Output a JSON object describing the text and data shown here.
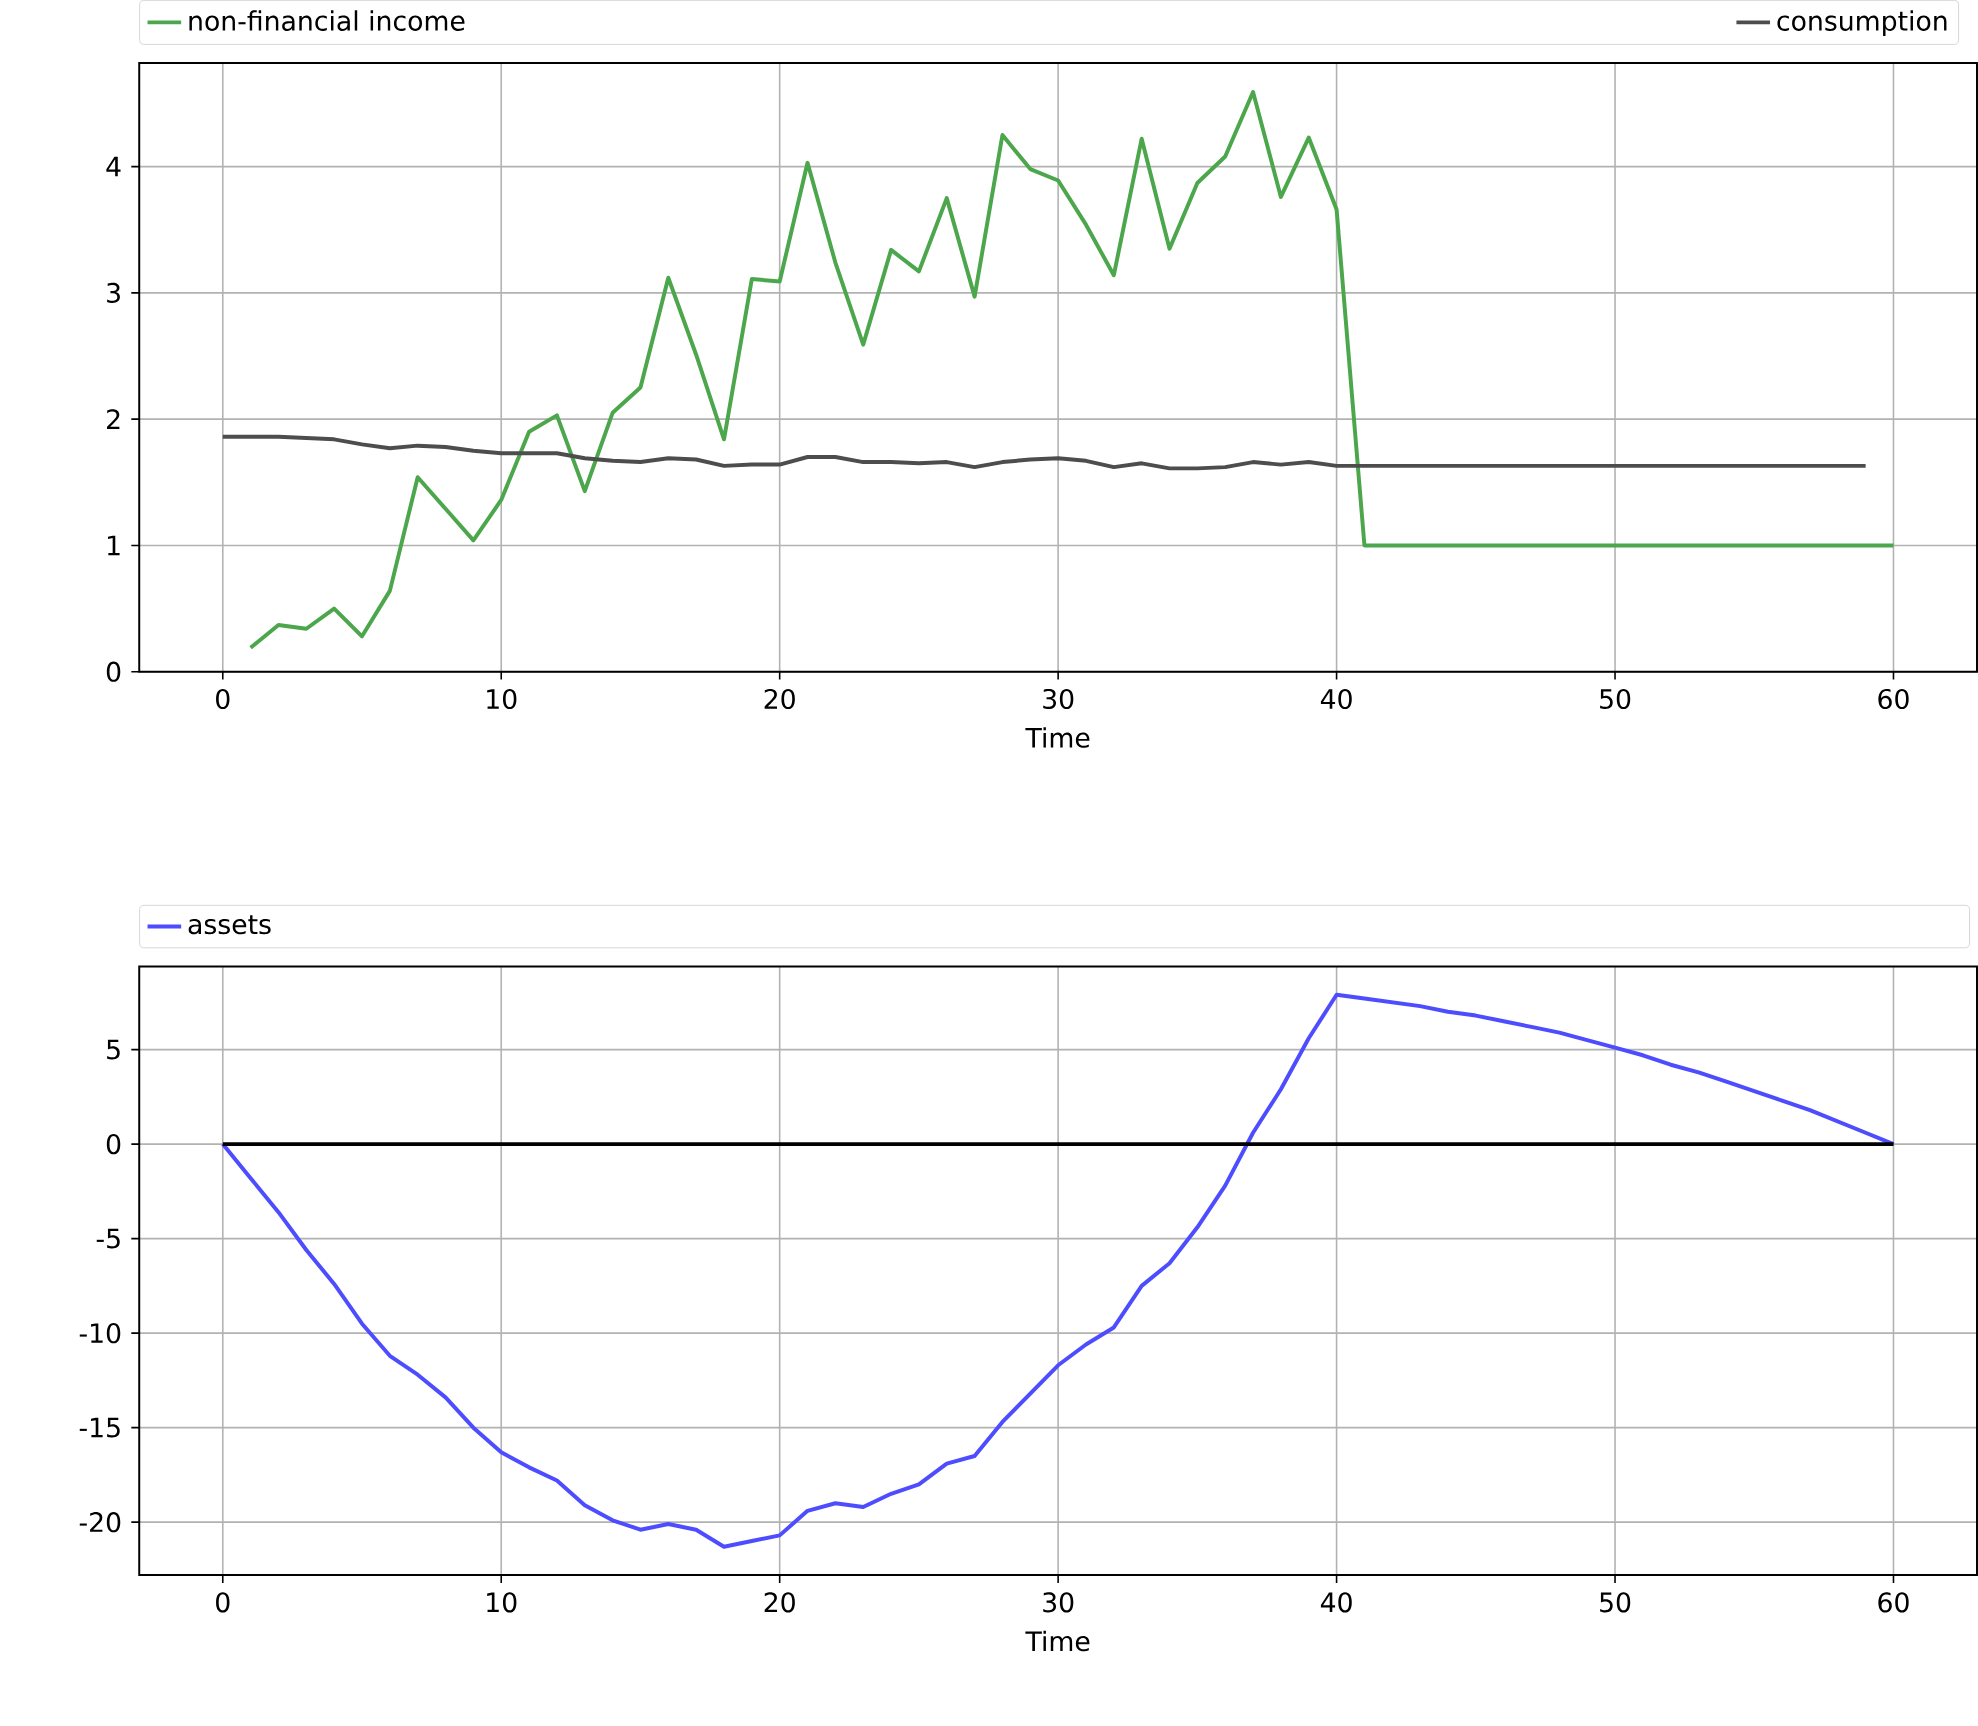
{
  "chart_data": [
    {
      "type": "line",
      "xlabel": "Time",
      "xlim": [
        -3,
        63
      ],
      "ylim": [
        0,
        4.82
      ],
      "xticks": [
        0,
        10,
        20,
        30,
        40,
        50,
        60
      ],
      "yticks": [
        0,
        1,
        2,
        3,
        4
      ],
      "grid": true,
      "legend": "top",
      "marker": "none",
      "line_style": "solid",
      "series": [
        {
          "name": "non-financial income",
          "color": "#4ca64c",
          "x": [
            1,
            2,
            3,
            4,
            5,
            6,
            7,
            8,
            9,
            10,
            11,
            12,
            13,
            14,
            15,
            16,
            17,
            18,
            19,
            20,
            21,
            22,
            23,
            24,
            25,
            26,
            27,
            28,
            29,
            30,
            31,
            32,
            33,
            34,
            35,
            36,
            37,
            38,
            39,
            40,
            41,
            42,
            43,
            44,
            45,
            46,
            47,
            48,
            49,
            50,
            51,
            52,
            53,
            54,
            55,
            56,
            57,
            58,
            59,
            60
          ],
          "values": [
            0.19,
            0.37,
            0.34,
            0.5,
            0.28,
            0.64,
            1.54,
            1.29,
            1.04,
            1.36,
            1.9,
            2.03,
            1.43,
            2.05,
            2.25,
            3.12,
            2.51,
            1.84,
            3.11,
            3.09,
            4.03,
            3.24,
            2.59,
            3.34,
            3.17,
            3.75,
            2.97,
            4.25,
            3.98,
            3.89,
            3.54,
            3.14,
            4.22,
            3.35,
            3.87,
            4.08,
            4.59,
            3.76,
            4.23,
            3.66,
            1.0,
            1.0,
            1.0,
            1.0,
            1.0,
            1.0,
            1.0,
            1.0,
            1.0,
            1.0,
            1.0,
            1.0,
            1.0,
            1.0,
            1.0,
            1.0,
            1.0,
            1.0,
            1.0,
            1.0
          ]
        },
        {
          "name": "consumption",
          "color": "#4d4d4d",
          "x": [
            0,
            1,
            2,
            3,
            4,
            5,
            6,
            7,
            8,
            9,
            10,
            11,
            12,
            13,
            14,
            15,
            16,
            17,
            18,
            19,
            20,
            21,
            22,
            23,
            24,
            25,
            26,
            27,
            28,
            29,
            30,
            31,
            32,
            33,
            34,
            35,
            36,
            37,
            38,
            39,
            40,
            41,
            42,
            43,
            44,
            45,
            46,
            47,
            48,
            49,
            50,
            51,
            52,
            53,
            54,
            55,
            56,
            57,
            58,
            59
          ],
          "values": [
            1.86,
            1.86,
            1.86,
            1.85,
            1.84,
            1.8,
            1.77,
            1.79,
            1.78,
            1.75,
            1.73,
            1.73,
            1.73,
            1.69,
            1.67,
            1.66,
            1.69,
            1.68,
            1.63,
            1.64,
            1.64,
            1.7,
            1.7,
            1.66,
            1.66,
            1.65,
            1.66,
            1.62,
            1.66,
            1.68,
            1.69,
            1.67,
            1.62,
            1.65,
            1.61,
            1.61,
            1.62,
            1.66,
            1.64,
            1.66,
            1.63,
            1.63,
            1.63,
            1.63,
            1.63,
            1.63,
            1.63,
            1.63,
            1.63,
            1.63,
            1.63,
            1.63,
            1.63,
            1.63,
            1.63,
            1.63,
            1.63,
            1.63,
            1.63,
            1.63
          ]
        }
      ]
    },
    {
      "type": "line",
      "xlabel": "Time",
      "xlim": [
        -3,
        63
      ],
      "ylim": [
        -22.8,
        9.4
      ],
      "xticks": [
        0,
        10,
        20,
        30,
        40,
        50,
        60
      ],
      "yticks": [
        -20,
        -15,
        -10,
        -5,
        0,
        5
      ],
      "grid": true,
      "legend": "top",
      "marker": "none",
      "line_style": "solid",
      "series": [
        {
          "name": "assets",
          "color": "#4d4dff",
          "x": [
            0,
            1,
            2,
            3,
            4,
            5,
            6,
            7,
            8,
            9,
            10,
            11,
            12,
            13,
            14,
            15,
            16,
            17,
            18,
            19,
            20,
            21,
            22,
            23,
            24,
            25,
            26,
            27,
            28,
            29,
            30,
            31,
            32,
            33,
            34,
            35,
            36,
            37,
            38,
            39,
            40,
            41,
            42,
            43,
            44,
            45,
            46,
            47,
            48,
            49,
            50,
            51,
            52,
            53,
            54,
            55,
            56,
            57,
            58,
            59,
            60
          ],
          "values": [
            0,
            -1.8,
            -3.6,
            -5.6,
            -7.4,
            -9.5,
            -11.2,
            -12.2,
            -13.4,
            -15.0,
            -16.3,
            -17.1,
            -17.8,
            -19.1,
            -19.9,
            -20.4,
            -20.1,
            -20.4,
            -21.3,
            -21.0,
            -20.7,
            -19.4,
            -19.0,
            -19.2,
            -18.5,
            -18.0,
            -16.9,
            -16.5,
            -14.7,
            -13.2,
            -11.7,
            -10.6,
            -9.7,
            -7.5,
            -6.3,
            -4.4,
            -2.2,
            0.6,
            2.9,
            5.6,
            7.9,
            7.7,
            7.5,
            7.3,
            7.0,
            6.8,
            6.5,
            6.2,
            5.9,
            5.5,
            5.1,
            4.7,
            4.2,
            3.8,
            3.3,
            2.8,
            2.3,
            1.8,
            1.2,
            0.6,
            0
          ]
        },
        {
          "color": "#000000",
          "x": [
            0,
            60
          ],
          "values": [
            0,
            0
          ]
        }
      ]
    }
  ]
}
